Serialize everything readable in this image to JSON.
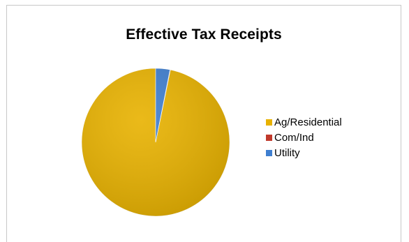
{
  "chart_data": {
    "type": "pie",
    "title": "Effective Tax Receipts",
    "categories": [
      "Ag/Residential",
      "Com/Ind",
      "Utility"
    ],
    "values": [
      96.8,
      0.1,
      3.1
    ],
    "colors": [
      "#e8b200",
      "#c0392b",
      "#3f7fd0"
    ],
    "legend_position": "right"
  }
}
